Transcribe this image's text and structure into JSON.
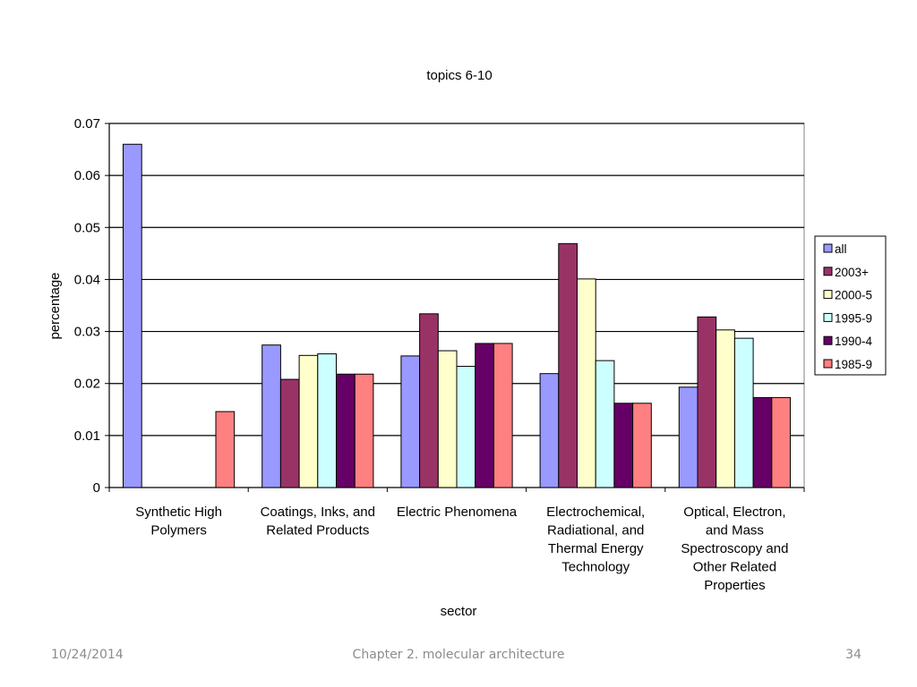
{
  "chart_data": {
    "type": "bar",
    "title": "topics 6-10",
    "xlabel": "sector",
    "ylabel": "percentage",
    "ylim": [
      0,
      0.07
    ],
    "yticks": [
      "0",
      "0.01",
      "0.02",
      "0.03",
      "0.04",
      "0.05",
      "0.06",
      "0.07"
    ],
    "grid": true,
    "legend_position": "right",
    "categories": [
      [
        "Synthetic High",
        "Polymers"
      ],
      [
        "Coatings, Inks, and",
        "Related Products"
      ],
      [
        "Electric Phenomena"
      ],
      [
        "Electrochemical,",
        "Radiational, and",
        "Thermal Energy",
        "Technology"
      ],
      [
        "Optical, Electron,",
        "and Mass",
        "Spectroscopy and",
        "Other Related",
        "Properties"
      ]
    ],
    "series": [
      {
        "name": "all",
        "color": "#9999ff",
        "values": [
          0.066,
          0.0274,
          0.0253,
          0.0219,
          0.0193
        ]
      },
      {
        "name": "2003+",
        "color": "#993366",
        "values": [
          0,
          0.0208,
          0.0334,
          0.0469,
          0.0328
        ]
      },
      {
        "name": "2000-5",
        "color": "#ffffcc",
        "values": [
          0,
          0.0254,
          0.0263,
          0.0401,
          0.0303
        ]
      },
      {
        "name": "1995-9",
        "color": "#ccffff",
        "values": [
          0,
          0.0257,
          0.0233,
          0.0244,
          0.0287
        ]
      },
      {
        "name": "1990-4",
        "color": "#660066",
        "values": [
          0,
          0.0218,
          0.0277,
          0.0162,
          0.0173
        ]
      },
      {
        "name": "1985-9",
        "color": "#ff8080",
        "values": [
          0.0146,
          0.0218,
          0.0277,
          0.0162,
          0.0173
        ]
      }
    ]
  },
  "footer": {
    "date": "10/24/2014",
    "chapter": "Chapter 2. molecular architecture",
    "page": "34"
  }
}
